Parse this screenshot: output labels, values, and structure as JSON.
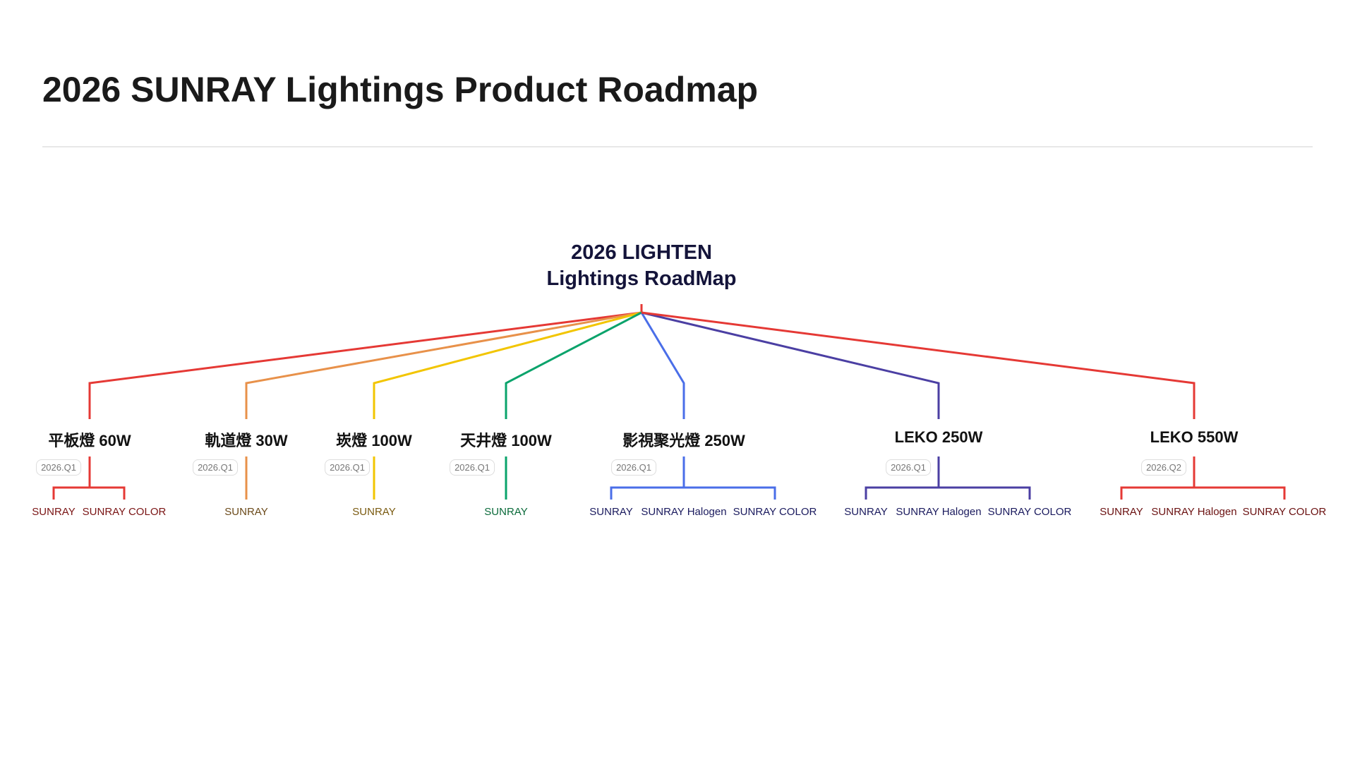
{
  "title": "2026 SUNRAY Lightings Product Roadmap",
  "root": {
    "line1": "2026 LIGHTEN",
    "line2": "Lightings RoadMap"
  },
  "branches": [
    {
      "label": "平板燈 60W",
      "date": "2026.Q1",
      "color": "#e53935",
      "text_color": "#7a1414",
      "leaves": [
        "SUNRAY",
        "SUNRAY COLOR"
      ]
    },
    {
      "label": "軌道燈 30W",
      "date": "2026.Q1",
      "color": "#e8914a",
      "text_color": "#6b4a1a",
      "leaves": [
        "SUNRAY"
      ]
    },
    {
      "label": "崁燈 100W",
      "date": "2026.Q1",
      "color": "#f2c500",
      "text_color": "#7a5a10",
      "leaves": [
        "SUNRAY"
      ]
    },
    {
      "label": "天井燈 100W",
      "date": "2026.Q1",
      "color": "#0aa36b",
      "text_color": "#0a6a3a",
      "leaves": [
        "SUNRAY"
      ]
    },
    {
      "label": "影視聚光燈 250W",
      "date": "2026.Q1",
      "color": "#4a6ee8",
      "text_color": "#1a1a5e",
      "leaves": [
        "SUNRAY",
        "SUNRAY Halogen",
        "SUNRAY COLOR"
      ]
    },
    {
      "label": "LEKO 250W",
      "date": "2026.Q1",
      "color": "#4b3fa3",
      "text_color": "#1a1a5e",
      "leaves": [
        "SUNRAY",
        "SUNRAY Halogen",
        "SUNRAY COLOR"
      ]
    },
    {
      "label": "LEKO 550W",
      "date": "2026.Q2",
      "color": "#e53935",
      "text_color": "#6a1010",
      "leaves": [
        "SUNRAY",
        "SUNRAY Halogen",
        "SUNRAY COLOR"
      ]
    }
  ]
}
